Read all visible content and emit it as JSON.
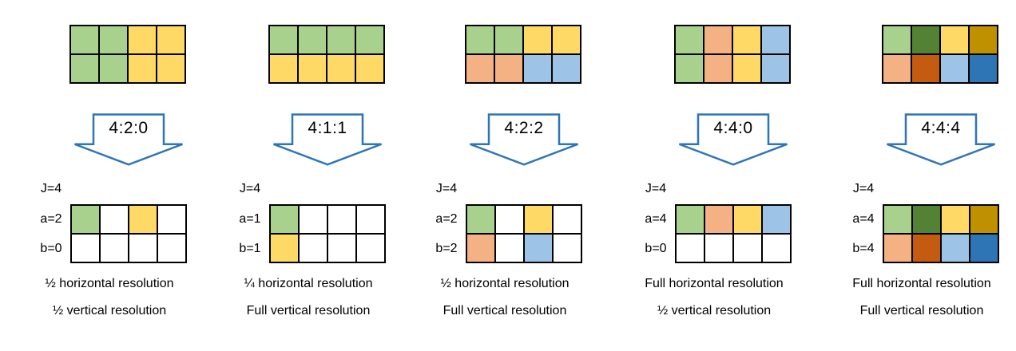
{
  "palette": {
    "green": "#a9d18e",
    "dark_green": "#548235",
    "yellow": "#ffd966",
    "dark_yellow": "#bf9000",
    "orange": "#f4b183",
    "dark_orange": "#c55a11",
    "blue": "#9dc3e6",
    "dark_blue": "#2e75b6",
    "white": "#ffffff"
  },
  "arrow_stroke": "#2e75b6",
  "columns": [
    {
      "scheme": "4:2:0",
      "labels": {
        "j": "J=4",
        "a": "a=2",
        "b": "b=0"
      },
      "top_grid": [
        [
          "green",
          "green",
          "yellow",
          "yellow"
        ],
        [
          "green",
          "green",
          "yellow",
          "yellow"
        ]
      ],
      "bottom_grid": [
        [
          "green",
          "white",
          "yellow",
          "white"
        ],
        [
          "white",
          "white",
          "white",
          "white"
        ]
      ],
      "captions": [
        "½ horizontal resolution",
        "½ vertical resolution"
      ]
    },
    {
      "scheme": "4:1:1",
      "labels": {
        "j": "J=4",
        "a": "a=1",
        "b": "b=1"
      },
      "top_grid": [
        [
          "green",
          "green",
          "green",
          "green"
        ],
        [
          "yellow",
          "yellow",
          "yellow",
          "yellow"
        ]
      ],
      "bottom_grid": [
        [
          "green",
          "white",
          "white",
          "white"
        ],
        [
          "yellow",
          "white",
          "white",
          "white"
        ]
      ],
      "captions": [
        "¼ horizontal resolution",
        "Full vertical resolution"
      ]
    },
    {
      "scheme": "4:2:2",
      "labels": {
        "j": "J=4",
        "a": "a=2",
        "b": "b=2"
      },
      "top_grid": [
        [
          "green",
          "green",
          "yellow",
          "yellow"
        ],
        [
          "orange",
          "orange",
          "blue",
          "blue"
        ]
      ],
      "bottom_grid": [
        [
          "green",
          "white",
          "yellow",
          "white"
        ],
        [
          "orange",
          "white",
          "blue",
          "white"
        ]
      ],
      "captions": [
        "½ horizontal resolution",
        "Full vertical resolution"
      ]
    },
    {
      "scheme": "4:4:0",
      "labels": {
        "j": "J=4",
        "a": "a=4",
        "b": "b=0"
      },
      "top_grid": [
        [
          "green",
          "orange",
          "yellow",
          "blue"
        ],
        [
          "green",
          "orange",
          "yellow",
          "blue"
        ]
      ],
      "bottom_grid": [
        [
          "green",
          "orange",
          "yellow",
          "blue"
        ],
        [
          "white",
          "white",
          "white",
          "white"
        ]
      ],
      "captions": [
        "Full horizontal resolution",
        "½ vertical resolution"
      ]
    },
    {
      "scheme": "4:4:4",
      "labels": {
        "j": "J=4",
        "a": "a=4",
        "b": "b=4"
      },
      "top_grid": [
        [
          "green",
          "dark_green",
          "yellow",
          "dark_yellow"
        ],
        [
          "orange",
          "dark_orange",
          "blue",
          "dark_blue"
        ]
      ],
      "bottom_grid": [
        [
          "green",
          "dark_green",
          "yellow",
          "dark_yellow"
        ],
        [
          "orange",
          "dark_orange",
          "blue",
          "dark_blue"
        ]
      ],
      "captions": [
        "Full horizontal resolution",
        "Full vertical resolution"
      ]
    }
  ]
}
